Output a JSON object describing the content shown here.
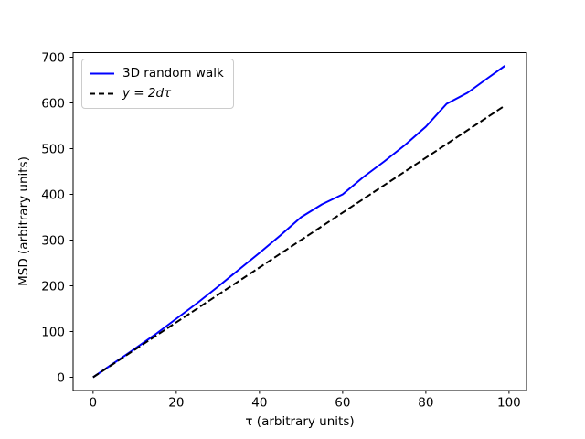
{
  "chart_data": {
    "type": "line",
    "title": "",
    "xlabel": "τ (arbitrary units)",
    "ylabel": "MSD (arbitrary units)",
    "xlim": [
      -4.8,
      104.2
    ],
    "ylim": [
      -29,
      710
    ],
    "xticks": [
      0,
      20,
      40,
      60,
      80,
      100
    ],
    "yticks": [
      0,
      100,
      200,
      300,
      400,
      500,
      600,
      700
    ],
    "grid": false,
    "legend_position": "upper-left",
    "series": [
      {
        "name": "3D random walk",
        "color": "#0000ff",
        "line_style": "solid",
        "x": [
          0,
          5,
          10,
          15,
          20,
          25,
          30,
          35,
          40,
          45,
          50,
          55,
          60,
          65,
          70,
          75,
          80,
          85,
          90,
          95,
          99
        ],
        "y": [
          0,
          31,
          62,
          94,
          128,
          162,
          198,
          235,
          272,
          310,
          350,
          378,
          400,
          438,
          472,
          508,
          548,
          598,
          622,
          655,
          681
        ]
      },
      {
        "name": "y = 2dτ",
        "color": "#000000",
        "line_style": "dashed",
        "x": [
          0,
          99
        ],
        "y": [
          0,
          594
        ]
      }
    ],
    "colors": {
      "background": "#ffffff",
      "axes": "#000000",
      "text": "#000000",
      "legend_border": "#cccccc"
    }
  }
}
